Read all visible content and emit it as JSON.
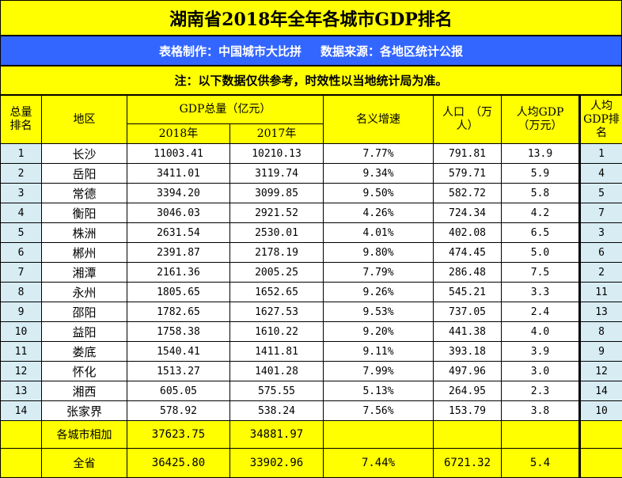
{
  "title": "湖南省2018年全年各城市GDP排名",
  "source": {
    "maker": "表格制作：中国城市大比拼",
    "origin": "数据来源：各地区统计公报"
  },
  "note": "注：以下数据仅供参考，时效性以当地统计局为准。",
  "headers": {
    "rank": "总量排名",
    "region": "地区",
    "gdp_total": "GDP总量（亿元）",
    "year_2018": "2018年",
    "year_2017": "2017年",
    "growth": "名义增速",
    "population": "人口　（万人）",
    "per_capita": "人均GDP（万元）",
    "per_capita_rank": "人均GDP排名"
  },
  "rows": [
    {
      "rank": "1",
      "region": "长沙",
      "gdp2018": "11003.41",
      "gdp2017": "10210.13",
      "growth": "7.77%",
      "pop": "791.81",
      "pc": "13.9",
      "pcrank": "1"
    },
    {
      "rank": "2",
      "region": "岳阳",
      "gdp2018": "3411.01",
      "gdp2017": "3119.74",
      "growth": "9.34%",
      "pop": "579.71",
      "pc": "5.9",
      "pcrank": "4"
    },
    {
      "rank": "3",
      "region": "常德",
      "gdp2018": "3394.20",
      "gdp2017": "3099.85",
      "growth": "9.50%",
      "pop": "582.72",
      "pc": "5.8",
      "pcrank": "5"
    },
    {
      "rank": "4",
      "region": "衡阳",
      "gdp2018": "3046.03",
      "gdp2017": "2921.52",
      "growth": "4.26%",
      "pop": "724.34",
      "pc": "4.2",
      "pcrank": "7"
    },
    {
      "rank": "5",
      "region": "株洲",
      "gdp2018": "2631.54",
      "gdp2017": "2530.01",
      "growth": "4.01%",
      "pop": "402.08",
      "pc": "6.5",
      "pcrank": "3"
    },
    {
      "rank": "6",
      "region": "郴州",
      "gdp2018": "2391.87",
      "gdp2017": "2178.19",
      "growth": "9.80%",
      "pop": "474.45",
      "pc": "5.0",
      "pcrank": "6"
    },
    {
      "rank": "7",
      "region": "湘潭",
      "gdp2018": "2161.36",
      "gdp2017": "2005.25",
      "growth": "7.79%",
      "pop": "286.48",
      "pc": "7.5",
      "pcrank": "2"
    },
    {
      "rank": "8",
      "region": "永州",
      "gdp2018": "1805.65",
      "gdp2017": "1652.65",
      "growth": "9.26%",
      "pop": "545.21",
      "pc": "3.3",
      "pcrank": "11"
    },
    {
      "rank": "9",
      "region": "邵阳",
      "gdp2018": "1782.65",
      "gdp2017": "1627.53",
      "growth": "9.53%",
      "pop": "737.05",
      "pc": "2.4",
      "pcrank": "13"
    },
    {
      "rank": "10",
      "region": "益阳",
      "gdp2018": "1758.38",
      "gdp2017": "1610.22",
      "growth": "9.20%",
      "pop": "441.38",
      "pc": "4.0",
      "pcrank": "8"
    },
    {
      "rank": "11",
      "region": "娄底",
      "gdp2018": "1540.41",
      "gdp2017": "1411.81",
      "growth": "9.11%",
      "pop": "393.18",
      "pc": "3.9",
      "pcrank": "9"
    },
    {
      "rank": "12",
      "region": "怀化",
      "gdp2018": "1513.27",
      "gdp2017": "1401.28",
      "growth": "7.99%",
      "pop": "497.96",
      "pc": "3.0",
      "pcrank": "12"
    },
    {
      "rank": "13",
      "region": "湘西",
      "gdp2018": "605.05",
      "gdp2017": "575.55",
      "growth": "5.13%",
      "pop": "264.95",
      "pc": "2.3",
      "pcrank": "14"
    },
    {
      "rank": "14",
      "region": "张家界",
      "gdp2018": "578.92",
      "gdp2017": "538.24",
      "growth": "7.56%",
      "pop": "153.79",
      "pc": "3.8",
      "pcrank": "10"
    }
  ],
  "sum_row": {
    "label": "各城市相加",
    "gdp2018": "37623.75",
    "gdp2017": "34881.97"
  },
  "total_row": {
    "label": "全省",
    "gdp2018": "36425.80",
    "gdp2017": "33902.96",
    "growth": "7.44%",
    "pop": "6721.32",
    "pc": "5.4"
  },
  "colors": {
    "yellow": "#ffff00",
    "blue": "#3366ff",
    "rank_cell": "#d7ecf3"
  }
}
